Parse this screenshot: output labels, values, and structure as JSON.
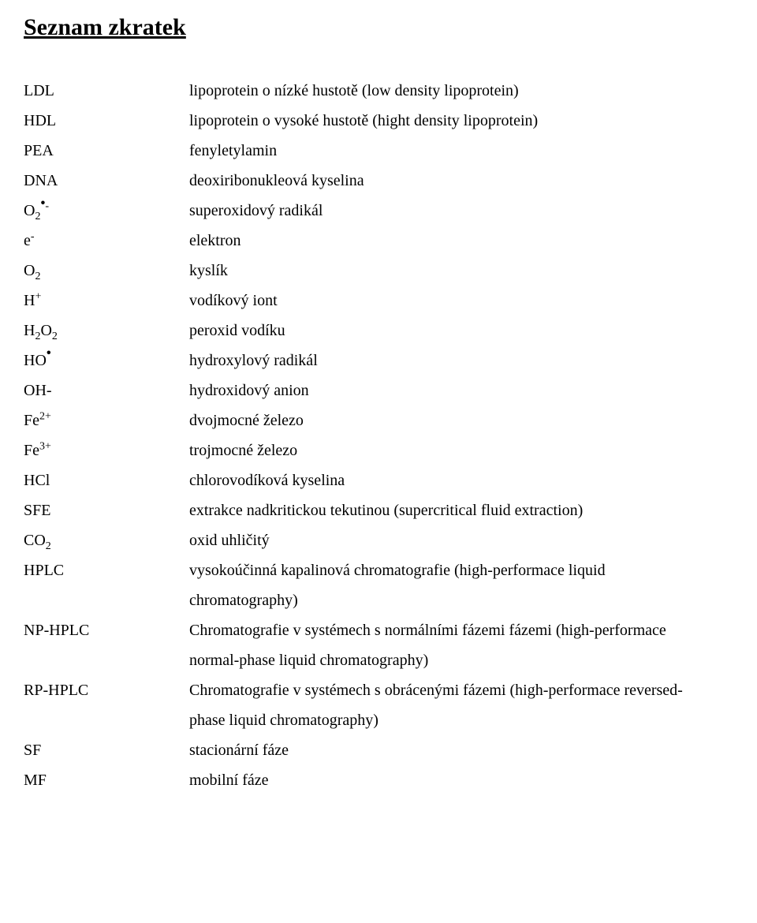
{
  "title": "Seznam zkratek",
  "items": [
    {
      "abbr_html": "LDL",
      "def": "lipoprotein o nízké hustotě (low density lipoprotein)"
    },
    {
      "abbr_html": "HDL",
      "def": "lipoprotein o vysoké hustotě (hight density lipoprotein)"
    },
    {
      "abbr_html": "PEA",
      "def": "fenyletylamin"
    },
    {
      "abbr_html": "DNA",
      "def": "deoxiribonukleová kyselina"
    },
    {
      "abbr_html": "O<sub>2</sub><sup><span class='dot'>•</span>-</sup>",
      "def": "superoxidový radikál"
    },
    {
      "abbr_html": "e<sup>-</sup>",
      "def": "elektron"
    },
    {
      "abbr_html": "O<sub>2</sub>",
      "def": "kyslík"
    },
    {
      "abbr_html": "H<sup>+</sup>",
      "def": "vodíkový iont"
    },
    {
      "abbr_html": "H<sub>2</sub>O<sub>2</sub>",
      "def": "peroxid vodíku"
    },
    {
      "abbr_html": "HO<sup><span class='dot'>•</span></sup>",
      "def": "hydroxylový radikál"
    },
    {
      "abbr_html": "OH-",
      "def": "hydroxidový anion"
    },
    {
      "abbr_html": "Fe<sup>2+</sup>",
      "def": "dvojmocné železo"
    },
    {
      "abbr_html": "Fe<sup>3+</sup>",
      "def": "trojmocné železo"
    },
    {
      "abbr_html": "HCl",
      "def": "chlorovodíková kyselina"
    },
    {
      "abbr_html": "SFE",
      "def": "extrakce nadkritickou tekutinou (supercritical fluid extraction)"
    },
    {
      "abbr_html": "CO<sub>2</sub>",
      "def": "oxid uhličitý"
    },
    {
      "abbr_html": "HPLC",
      "def": "vysokoúčinná kapalinová chromatografie (high-performace liquid",
      "def2": "chromatography)"
    },
    {
      "abbr_html": "NP-HPLC",
      "def": "Chromatografie v systémech s normálními fázemi fázemi (high-performace",
      "def2": "normal-phase liquid chromatography)"
    },
    {
      "abbr_html": "RP-HPLC",
      "def": "Chromatografie v systémech s obrácenými fázemi (high-performace reversed-",
      "def2": "phase liquid chromatography)"
    },
    {
      "abbr_html": "SF",
      "def": "stacionární fáze"
    },
    {
      "abbr_html": "MF",
      "def": "mobilní fáze"
    }
  ]
}
